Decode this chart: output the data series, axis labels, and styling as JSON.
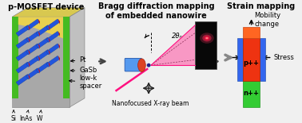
{
  "title1": "p-MOSFET device",
  "title2": "Bragg diffraction mapping\nof embedded nanowire",
  "title3": "Strain mapping",
  "label_pt": "Pt",
  "label_gasb": "GaSb",
  "label_lowk": "low-k\nspacer",
  "label_si": "Si",
  "label_inas": "InAs",
  "label_w": "W",
  "label_beam": "Nanofocused X-ray beam",
  "label_2theta": "2θₙ",
  "label_ppp": "p++",
  "label_npp": "n++",
  "label_stress": "Stress",
  "label_mobility": "Mobility\nchange",
  "bg_color": "#f0f0f0",
  "title_fontsize": 7.0,
  "label_fontsize": 6.0,
  "small_fontsize": 5.5
}
